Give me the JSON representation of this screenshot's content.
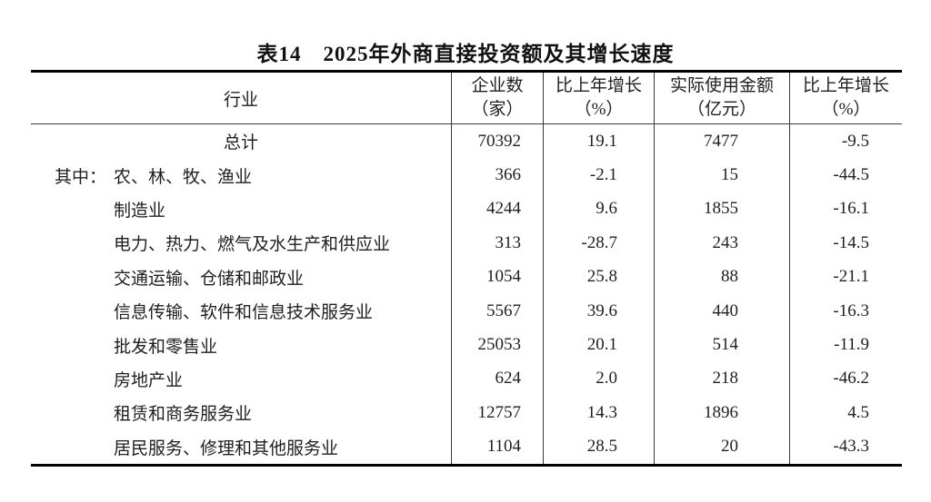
{
  "title": "表14　2025年外商直接投资额及其增长速度",
  "table": {
    "columns": [
      {
        "line1": "行业"
      },
      {
        "line1": "企业数",
        "line2": "（家）"
      },
      {
        "line1": "比上年增长",
        "line2": "（%）"
      },
      {
        "line1": "实际使用金额",
        "line2": "（亿元）"
      },
      {
        "line1": "比上年增长",
        "line2": "（%）"
      }
    ],
    "rows": [
      {
        "prefix": "",
        "industry": "总计",
        "enterprises": "70392",
        "growth_enterprises": "19.1",
        "amount": "7477",
        "growth_amount": "-9.5"
      },
      {
        "prefix": "其中：",
        "industry": "农、林、牧、渔业",
        "enterprises": "366",
        "growth_enterprises": "-2.1",
        "amount": "15",
        "growth_amount": "-44.5"
      },
      {
        "prefix": "",
        "industry": "制造业",
        "enterprises": "4244",
        "growth_enterprises": "9.6",
        "amount": "1855",
        "growth_amount": "-16.1"
      },
      {
        "prefix": "",
        "industry": "电力、热力、燃气及水生产和供应业",
        "enterprises": "313",
        "growth_enterprises": "-28.7",
        "amount": "243",
        "growth_amount": "-14.5"
      },
      {
        "prefix": "",
        "industry": "交通运输、仓储和邮政业",
        "enterprises": "1054",
        "growth_enterprises": "25.8",
        "amount": "88",
        "growth_amount": "-21.1"
      },
      {
        "prefix": "",
        "industry": "信息传输、软件和信息技术服务业",
        "enterprises": "5567",
        "growth_enterprises": "39.6",
        "amount": "440",
        "growth_amount": "-16.3"
      },
      {
        "prefix": "",
        "industry": "批发和零售业",
        "enterprises": "25053",
        "growth_enterprises": "20.1",
        "amount": "514",
        "growth_amount": "-11.9"
      },
      {
        "prefix": "",
        "industry": "房地产业",
        "enterprises": "624",
        "growth_enterprises": "2.0",
        "amount": "218",
        "growth_amount": "-46.2"
      },
      {
        "prefix": "",
        "industry": "租赁和商务服务业",
        "enterprises": "12757",
        "growth_enterprises": "14.3",
        "amount": "1896",
        "growth_amount": "4.5"
      },
      {
        "prefix": "",
        "industry": "居民服务、修理和其他服务业",
        "enterprises": "1104",
        "growth_enterprises": "28.5",
        "amount": "20",
        "growth_amount": "-43.3"
      }
    ]
  }
}
